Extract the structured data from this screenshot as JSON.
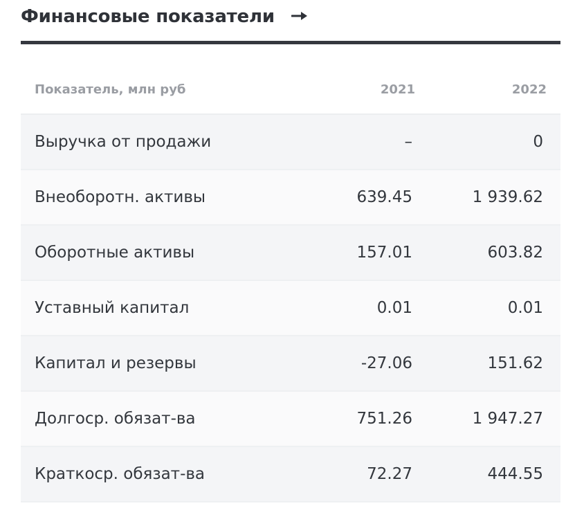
{
  "widget": {
    "title": "Финансовые показатели",
    "arrow_icon": "arrow-right-icon"
  },
  "table": {
    "headers": {
      "indicator": "Показатель, млн руб",
      "year1": "2021",
      "year2": "2022"
    },
    "rows": [
      {
        "label": "Выручка от продажи",
        "v2021": "–",
        "v2022": "0"
      },
      {
        "label": "Внеоборотн. активы",
        "v2021": "639.45",
        "v2022": "1 939.62"
      },
      {
        "label": "Оборотные активы",
        "v2021": "157.01",
        "v2022": "603.82"
      },
      {
        "label": "Уставный капитал",
        "v2021": "0.01",
        "v2022": "0.01"
      },
      {
        "label": "Капитал и резервы",
        "v2021": "-27.06",
        "v2022": "151.62"
      },
      {
        "label": "Долгоср. обязат-ва",
        "v2021": "751.26",
        "v2022": "1 947.27"
      },
      {
        "label": "Краткоср. обязат-ва",
        "v2021": "72.27",
        "v2022": "444.55"
      }
    ]
  },
  "colors": {
    "header_rule": "#35383f",
    "row_odd": "#f4f5f7",
    "row_even": "#fafafb",
    "header_text": "#9a9da3"
  }
}
